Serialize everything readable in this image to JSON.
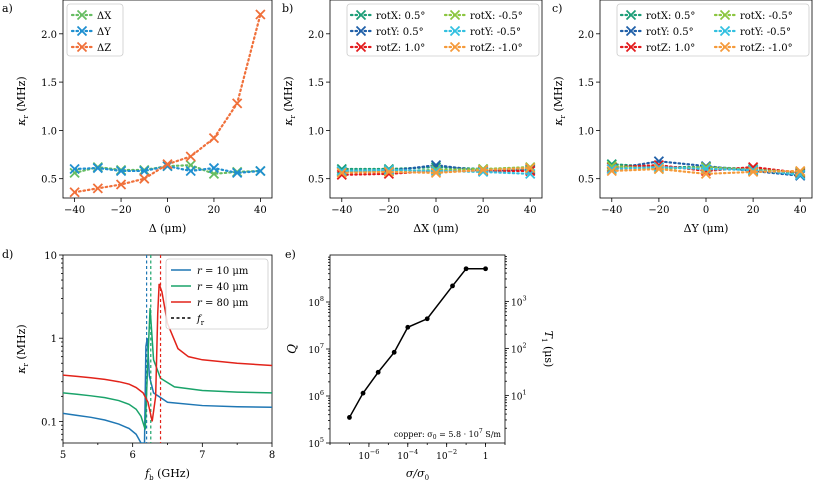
{
  "figure": {
    "colors": {
      "teal": "#1b9e77",
      "orange": "#d95f02",
      "blue": "#1f6fb4",
      "red": "#e31a1c",
      "lime": "#8cc640",
      "cyan": "#33c0e0",
      "amber": "#f59a3a",
      "green": "#1aa36a",
      "dblue": "#1f77b4",
      "dred": "#e2231a",
      "black": "#000000"
    }
  },
  "chart_data": [
    {
      "panel": "a)",
      "type": "line",
      "xlabel": "Δ (μm)",
      "ylabel": "κ_r (MHz)",
      "ylabel_main": "κ",
      "ylabel_sub": "r",
      "ylabel_unit": "(MHz)",
      "xlim": [
        -45,
        45
      ],
      "ylim": [
        0.3,
        2.35
      ],
      "xticks": [
        -40,
        -20,
        0,
        20,
        40
      ],
      "xtick_labels": [
        "−40",
        "−20",
        "0",
        "20",
        "40"
      ],
      "yticks": [
        0.5,
        1.0,
        1.5,
        2.0
      ],
      "ytick_labels": [
        "0.5",
        "1.0",
        "1.5",
        "2.0"
      ],
      "legend": "top-left",
      "x": [
        -40,
        -30,
        -20,
        -10,
        0,
        10,
        20,
        30,
        40
      ],
      "series": [
        {
          "name": "ΔX",
          "color": "#66bd63",
          "values": [
            0.56,
            0.62,
            0.59,
            0.59,
            0.63,
            0.64,
            0.55,
            0.57,
            0.58
          ]
        },
        {
          "name": "ΔY",
          "color": "#1f8fd0",
          "values": [
            0.6,
            0.61,
            0.58,
            0.58,
            0.63,
            0.58,
            0.61,
            0.56,
            0.58
          ]
        },
        {
          "name": "ΔZ",
          "color": "#f0703a",
          "values": [
            0.36,
            0.4,
            0.44,
            0.5,
            0.65,
            0.73,
            0.92,
            1.28,
            2.2
          ]
        }
      ]
    },
    {
      "panel": "b)",
      "type": "line",
      "xlabel": "ΔX (μm)",
      "ylabel": "κ_r (MHz)",
      "ylabel_main": "κ",
      "ylabel_sub": "r",
      "ylabel_unit": "(MHz)",
      "xlim": [
        -45,
        45
      ],
      "ylim": [
        0.3,
        2.35
      ],
      "xticks": [
        -40,
        -20,
        0,
        20,
        40
      ],
      "xtick_labels": [
        "−40",
        "−20",
        "0",
        "20",
        "40"
      ],
      "yticks": [
        0.5,
        1.0,
        1.5,
        2.0
      ],
      "ytick_labels": [
        "0.5",
        "1.0",
        "1.5",
        "2.0"
      ],
      "legend": "top-right",
      "x": [
        -40,
        -20,
        0,
        20,
        40
      ],
      "series": [
        {
          "name": "rotX: 0.5°",
          "color": "#1b9e77",
          "values": [
            0.6,
            0.6,
            0.62,
            0.6,
            0.6
          ]
        },
        {
          "name": "rotY: 0.5°",
          "color": "#1f5fa8",
          "values": [
            0.58,
            0.58,
            0.64,
            0.58,
            0.59
          ]
        },
        {
          "name": "rotZ: 1.0°",
          "color": "#e31a1c",
          "values": [
            0.54,
            0.55,
            0.58,
            0.58,
            0.58
          ]
        },
        {
          "name": "rotX: -0.5°",
          "color": "#8cc640",
          "values": [
            0.57,
            0.58,
            0.59,
            0.6,
            0.62
          ]
        },
        {
          "name": "rotY: -0.5°",
          "color": "#33c0e0",
          "values": [
            0.58,
            0.59,
            0.58,
            0.57,
            0.55
          ]
        },
        {
          "name": "rotZ: -1.0°",
          "color": "#f59a3a",
          "values": [
            0.56,
            0.57,
            0.56,
            0.59,
            0.61
          ]
        }
      ]
    },
    {
      "panel": "c)",
      "type": "line",
      "xlabel": "ΔY (μm)",
      "ylabel": "κ_r (MHz)",
      "ylabel_main": "κ",
      "ylabel_sub": "r",
      "ylabel_unit": "(MHz)",
      "xlim": [
        -45,
        45
      ],
      "ylim": [
        0.3,
        2.35
      ],
      "xticks": [
        -40,
        -20,
        0,
        20,
        40
      ],
      "xtick_labels": [
        "−40",
        "−20",
        "0",
        "20",
        "40"
      ],
      "yticks": [
        0.5,
        1.0,
        1.5,
        2.0
      ],
      "ytick_labels": [
        "0.5",
        "1.0",
        "1.5",
        "2.0"
      ],
      "legend": "top-right",
      "x": [
        -40,
        -20,
        0,
        20,
        40
      ],
      "series": [
        {
          "name": "rotX: 0.5°",
          "color": "#1b9e77",
          "values": [
            0.65,
            0.62,
            0.62,
            0.6,
            0.55
          ]
        },
        {
          "name": "rotY: 0.5°",
          "color": "#1f5fa8",
          "values": [
            0.6,
            0.68,
            0.63,
            0.58,
            0.53
          ]
        },
        {
          "name": "rotZ: 1.0°",
          "color": "#e31a1c",
          "values": [
            0.62,
            0.64,
            0.58,
            0.62,
            0.56
          ]
        },
        {
          "name": "rotX: -0.5°",
          "color": "#8cc640",
          "values": [
            0.63,
            0.6,
            0.62,
            0.59,
            0.57
          ]
        },
        {
          "name": "rotY: -0.5°",
          "color": "#33c0e0",
          "values": [
            0.6,
            0.62,
            0.6,
            0.59,
            0.54
          ]
        },
        {
          "name": "rotZ: -1.0°",
          "color": "#f59a3a",
          "values": [
            0.58,
            0.6,
            0.55,
            0.57,
            0.58
          ]
        }
      ]
    },
    {
      "panel": "d)",
      "type": "line",
      "xlabel": "f_b (GHz)",
      "xlabel_main": "f",
      "xlabel_sub": "b",
      "xlabel_unit": "(GHz)",
      "ylabel": "κ_r (MHz)",
      "ylabel_main": "κ",
      "ylabel_sub": "r",
      "ylabel_unit": "(MHz)",
      "xscale": "linear",
      "yscale": "log",
      "xlim": [
        5,
        8
      ],
      "ylim": [
        0.055,
        10
      ],
      "xticks": [
        5,
        6,
        7,
        8
      ],
      "xtick_labels": [
        "5",
        "6",
        "7",
        "8"
      ],
      "yticks": [
        0.1,
        1,
        10
      ],
      "ytick_labels": [
        "0.1",
        "1",
        "10"
      ],
      "legend": "top-right",
      "series": [
        {
          "name": "r = 10 μm",
          "label_var": "r",
          "label_val": "= 10 μm",
          "color": "#1f77b4",
          "fr": 6.2,
          "x": [
            5.0,
            5.2,
            5.4,
            5.6,
            5.8,
            5.95,
            6.05,
            6.12,
            6.17,
            6.19,
            6.21,
            6.24,
            6.3,
            6.5,
            7.0,
            7.5,
            8.0
          ],
          "y": [
            0.125,
            0.118,
            0.112,
            0.104,
            0.093,
            0.082,
            0.07,
            0.055,
            0.055,
            0.8,
            1.0,
            0.35,
            0.22,
            0.17,
            0.155,
            0.15,
            0.148
          ]
        },
        {
          "name": "r = 40 μm",
          "label_var": "r",
          "label_val": "= 40 μm",
          "color": "#1aa36a",
          "fr": 6.26,
          "x": [
            5.0,
            5.2,
            5.4,
            5.6,
            5.8,
            5.95,
            6.05,
            6.12,
            6.18,
            6.22,
            6.25,
            6.27,
            6.3,
            6.4,
            6.6,
            7.0,
            7.5,
            8.0
          ],
          "y": [
            0.22,
            0.212,
            0.203,
            0.193,
            0.178,
            0.16,
            0.14,
            0.115,
            0.08,
            0.6,
            2.3,
            1.3,
            0.55,
            0.33,
            0.26,
            0.235,
            0.225,
            0.22
          ]
        },
        {
          "name": "r = 80 μm",
          "label_var": "r",
          "label_val": "= 80 μm",
          "color": "#e2231a",
          "fr": 6.4,
          "x": [
            5.0,
            5.2,
            5.4,
            5.6,
            5.8,
            5.95,
            6.05,
            6.15,
            6.22,
            6.28,
            6.33,
            6.36,
            6.38,
            6.42,
            6.5,
            6.65,
            6.8,
            7.0,
            7.5,
            8.0
          ],
          "y": [
            0.36,
            0.348,
            0.335,
            0.32,
            0.3,
            0.28,
            0.255,
            0.22,
            0.17,
            0.1,
            0.2,
            2.0,
            4.5,
            3.6,
            1.5,
            0.75,
            0.6,
            0.55,
            0.5,
            0.47
          ]
        },
        {
          "name": "f_r",
          "label_var": "f",
          "label_sub": "r",
          "color": "#000000",
          "dashed": true
        }
      ]
    },
    {
      "panel": "e)",
      "type": "line",
      "xlabel": "σ/σ₀",
      "xlabel_text": "σ/σ",
      "xlabel_sub": "0",
      "ylabel": "Q",
      "y2label": "T₁ (μs)",
      "y2label_main": "T",
      "y2label_sub": "1",
      "y2label_unit": "(μs)",
      "xscale": "log",
      "yscale": "log",
      "xlim": [
        1e-08,
        10
      ],
      "ylim": [
        100000.0,
        1000000000.0
      ],
      "y2lim": [
        0.97,
        9700
      ],
      "xticks": [
        1e-06,
        0.0001,
        0.01,
        1
      ],
      "xtick_labels": [
        "10",
        "10",
        "10",
        "1"
      ],
      "xtick_exps": [
        "−6",
        "−4",
        "−2",
        ""
      ],
      "yticks": [
        100000.0,
        1000000.0,
        10000000.0,
        100000000.0
      ],
      "ytick_labels": [
        "10",
        "10",
        "10",
        "10"
      ],
      "ytick_exps": [
        "5",
        "6",
        "7",
        "8"
      ],
      "y2ticks": [
        10,
        100,
        1000
      ],
      "y2tick_labels": [
        "10",
        "10",
        "10"
      ],
      "y2tick_exps": [
        "1",
        "2",
        "3"
      ],
      "annotation": "copper: σ₀ = 5.8 · 10⁷ S/m",
      "annotation_text": "copper: σ",
      "annotation_sub": "0",
      "annotation_eq": " = 5.8 · 10",
      "annotation_exp": "7",
      "annotation_unit": " S/m",
      "x": [
        1e-07,
        5e-07,
        3e-06,
        2e-05,
        0.0001,
        0.001,
        0.02,
        0.1,
        1
      ],
      "y": [
        350000.0,
        1150000.0,
        3200000.0,
        8500000.0,
        29000000.0,
        44000000.0,
        220000000.0,
        510000000.0,
        510000000.0
      ],
      "series_color": "#000000"
    }
  ]
}
